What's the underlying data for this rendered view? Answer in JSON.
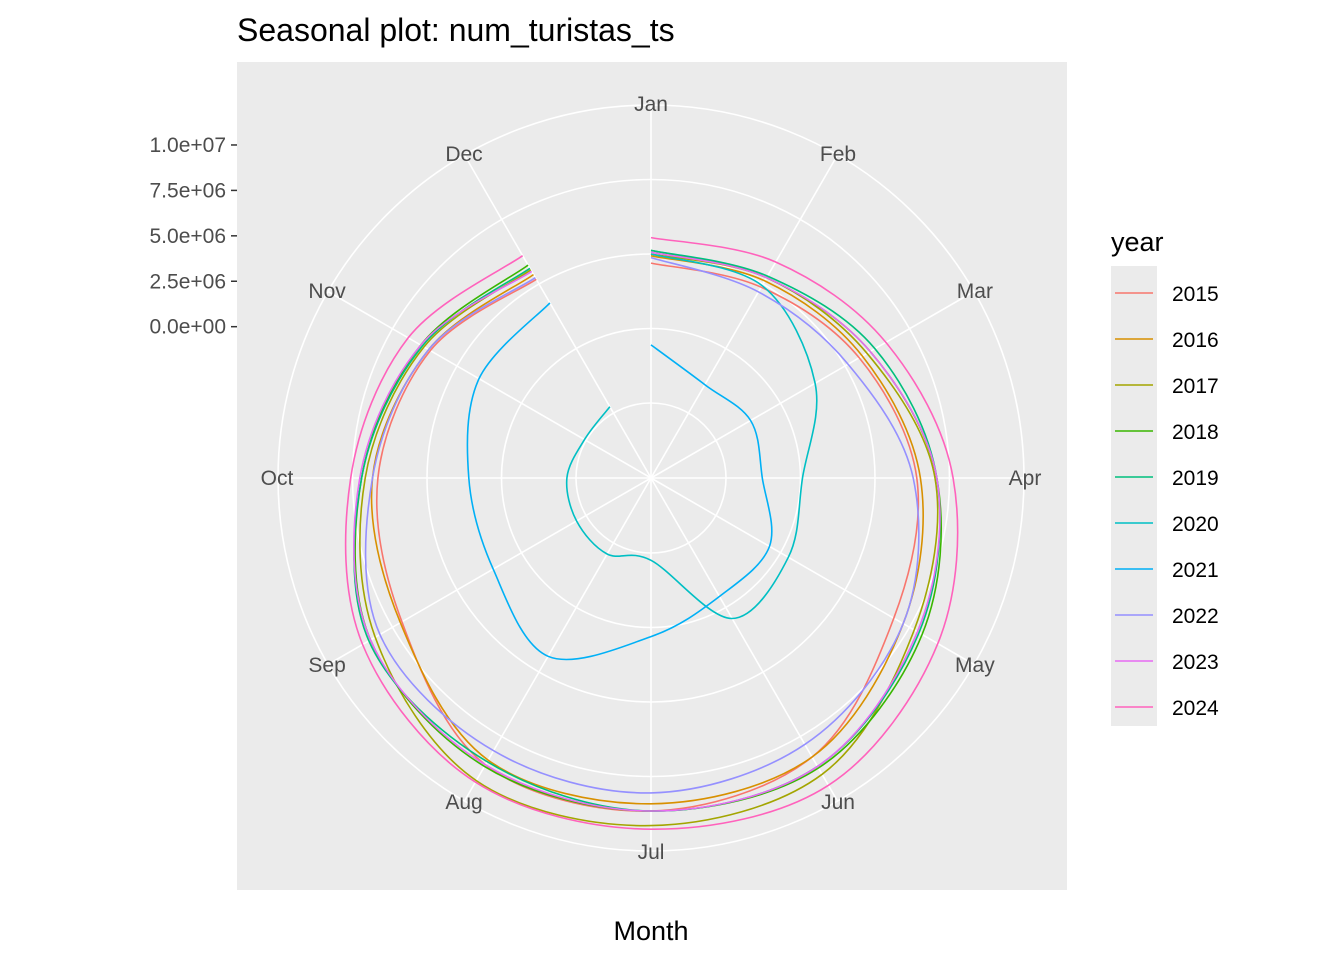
{
  "chart_data": {
    "type": "line",
    "coordinate_system": "polar",
    "title": "Seasonal plot: num_turistas_ts",
    "xlabel": "Month",
    "ylabel": "",
    "categories": [
      "Jan",
      "Feb",
      "Mar",
      "Apr",
      "May",
      "Jun",
      "Jul",
      "Aug",
      "Sep",
      "Oct",
      "Nov",
      "Dec"
    ],
    "radial_ticks": [
      "0.0e+00",
      "2.5e+06",
      "5.0e+06",
      "7.5e+06",
      "1.0e+07"
    ],
    "radial_tick_values": [
      0,
      2500000,
      5000000,
      7500000,
      10000000
    ],
    "ylim": [
      -4200000,
      12200000
    ],
    "grid": true,
    "legend": {
      "title": "year",
      "position": "right"
    },
    "series": [
      {
        "name": "2015",
        "color": "#F8766D",
        "values": [
          3500000,
          3800000,
          4900000,
          6300000,
          7100000,
          9400000,
          10000000,
          9900000,
          7500000,
          6700000,
          5700000,
          4300000
        ]
      },
      {
        "name": "2016",
        "color": "#D89000",
        "values": [
          3900000,
          4200000,
          5100000,
          6500000,
          7700000,
          9400000,
          9600000,
          9600000,
          7600000,
          7000000,
          5800000,
          4600000
        ]
      },
      {
        "name": "2017",
        "color": "#A3A500",
        "values": [
          4000000,
          4400000,
          5400000,
          7300000,
          8400000,
          10500000,
          10800000,
          10900000,
          9200000,
          7400000,
          6100000,
          4900000
        ]
      },
      {
        "name": "2018",
        "color": "#39B600",
        "values": [
          4200000,
          4400000,
          5600000,
          7400000,
          8900000,
          10100000,
          10000000,
          10000000,
          9500000,
          7600000,
          6300000,
          5200000
        ]
      },
      {
        "name": "2019",
        "color": "#00BF7D",
        "values": [
          4200000,
          4500000,
          5900000,
          7400000,
          8700000,
          10000000,
          10000000,
          9700000,
          9600000,
          7600000,
          6200000,
          5000000
        ]
      },
      {
        "name": "2020",
        "color": "#00BFC4",
        "values": [
          4000000,
          3900000,
          2100000,
          10000,
          400000,
          600000,
          -3800000,
          -3500000,
          -3600000,
          -3700000,
          -4100000,
          -3800000
        ]
      },
      {
        "name": "2021",
        "color": "#00B0F6",
        "values": [
          -1000000,
          -2400000,
          -2000000,
          -2200000,
          -800000,
          -800000,
          400000,
          3000000,
          1700000,
          1700000,
          2600000,
          2800000
        ]
      },
      {
        "name": "2022",
        "color": "#9590FF",
        "values": [
          3800000,
          3500000,
          4200000,
          6100000,
          7700000,
          8600000,
          9000000,
          9000000,
          8900000,
          7000000,
          5800000,
          4400000
        ]
      },
      {
        "name": "2023",
        "color": "#E76BF3",
        "values": [
          4100000,
          4400000,
          5600000,
          7400000,
          8600000,
          10000000,
          10000000,
          9900000,
          9500000,
          7700000,
          6300000,
          4800000
        ]
      },
      {
        "name": "2024",
        "color": "#FF62BC",
        "values": [
          4900000,
          5400000,
          6600000,
          8300000,
          9900000,
          11200000,
          11000000,
          11000000,
          10000000,
          8200000,
          7100000,
          5800000
        ]
      }
    ]
  }
}
